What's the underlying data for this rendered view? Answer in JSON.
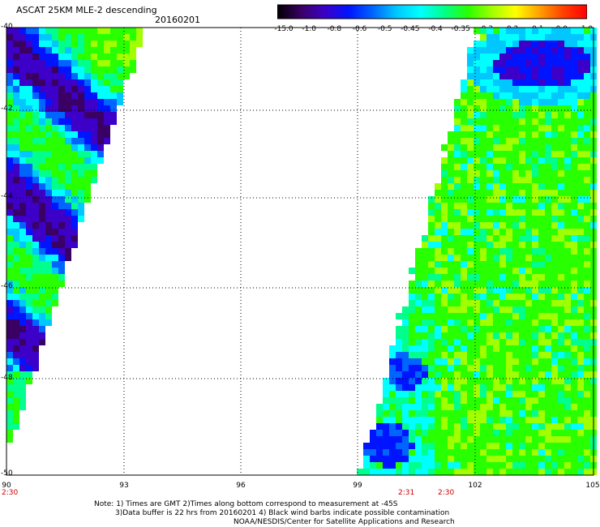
{
  "header": {
    "title": "ASCAT 25KM MLE-2 descending",
    "date": "20160201"
  },
  "colorbar": {
    "labels": [
      "-15.0",
      "-1.0",
      "-0.8",
      "-0.6",
      "-0.5",
      "-0.45",
      "-0.4",
      "-0.35",
      "-0.3",
      "-0.2",
      "-0.1",
      "0.0",
      "1.0"
    ],
    "colors": [
      "#000000",
      "#3a0064",
      "#3c00c8",
      "#0014ff",
      "#0064ff",
      "#00c8ff",
      "#00ffff",
      "#00ff8c",
      "#28ff00",
      "#a0ff00",
      "#ffff00",
      "#ffa000",
      "#ff4000",
      "#ff0000"
    ]
  },
  "map": {
    "lat_ticks": [
      "-40",
      "-42",
      "-44",
      "-46",
      "-48",
      "-50"
    ],
    "lon_ticks": [
      "90",
      "93",
      "96",
      "99",
      "102",
      "105"
    ],
    "time_labels": [
      "2:30",
      "2:31",
      "2:30"
    ]
  },
  "footer": {
    "note_line1": "Note: 1) Times are GMT 2)Times along bottom correspond to measurement at -45S",
    "note_line2": "3)Data buffer is 22 hrs from 20160201 4) Black wind barbs indicate possible contamination",
    "credit": "NOAA/NESDIS/Center for Satellite Applications and Research"
  }
}
